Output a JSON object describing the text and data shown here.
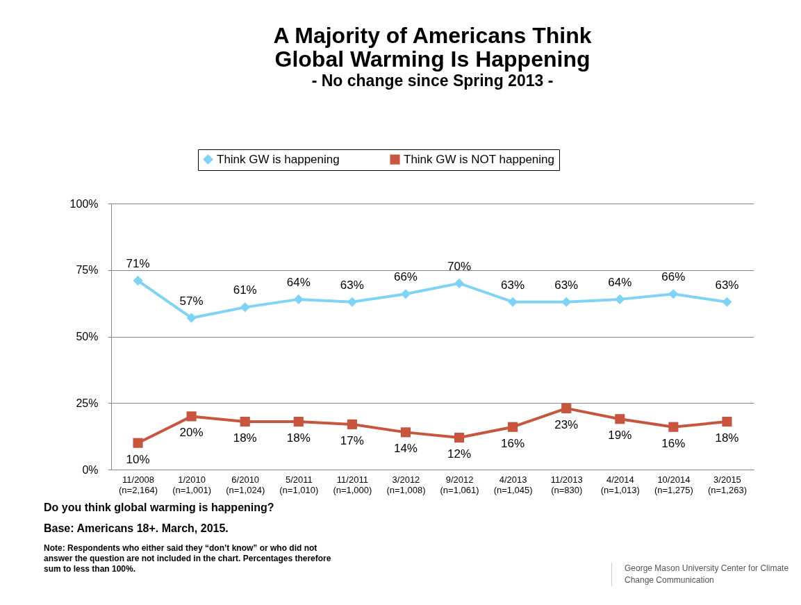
{
  "chart_data": {
    "type": "line",
    "title": "A Majority of Americans Think\nGlobal Warming Is Happening",
    "subtitle": "- No change since Spring 2013 -",
    "categories": [
      "11/2008 (n=2,164)",
      "1/2010 (n=1,001)",
      "6/2010 (n=1,024)",
      "5/2011 (n=1,010)",
      "11/2011 (n=1,000)",
      "3/2012 (n=1,008)",
      "9/2012 (n=1,061)",
      "4/2013 (n=1,045)",
      "11/2013 (n=830)",
      "4/2014 (n=1,013)",
      "10/2014 (n=1,275)",
      "3/2015 (n=1,263)"
    ],
    "series": [
      {
        "name": "Think GW is happening",
        "color": "#7fd3f5",
        "marker": "diamond",
        "values": [
          71,
          57,
          61,
          64,
          63,
          66,
          70,
          63,
          63,
          64,
          66,
          63
        ],
        "value_labels": [
          "71%",
          "57%",
          "61%",
          "64%",
          "63%",
          "66%",
          "70%",
          "63%",
          "63%",
          "64%",
          "66%",
          "63%"
        ]
      },
      {
        "name": "Think GW is NOT happening",
        "color": "#c8553d",
        "marker": "square",
        "values": [
          10,
          20,
          18,
          18,
          17,
          14,
          12,
          16,
          23,
          19,
          16,
          18
        ],
        "value_labels": [
          "10%",
          "20%",
          "18%",
          "18%",
          "17%",
          "14%",
          "12%",
          "16%",
          "23%",
          "19%",
          "16%",
          "18%"
        ]
      }
    ],
    "ylim": [
      0,
      100
    ],
    "yticks": [
      {
        "value": 0,
        "label": "0%"
      },
      {
        "value": 25,
        "label": "25%"
      },
      {
        "value": 50,
        "label": "50%"
      },
      {
        "value": 75,
        "label": "75%"
      },
      {
        "value": 100,
        "label": "100%"
      }
    ],
    "grid": "y",
    "legend": "top",
    "annotations": [
      "Do you think global warming is happening?",
      "Base: Americans 18+. March, 2015.",
      "Note: Respondents who either said they “don’t know” or who did not answer the question are not included in the chart. Percentages therefore sum to less than 100%.",
      "George Mason University Center for Climate Change Communication"
    ]
  }
}
